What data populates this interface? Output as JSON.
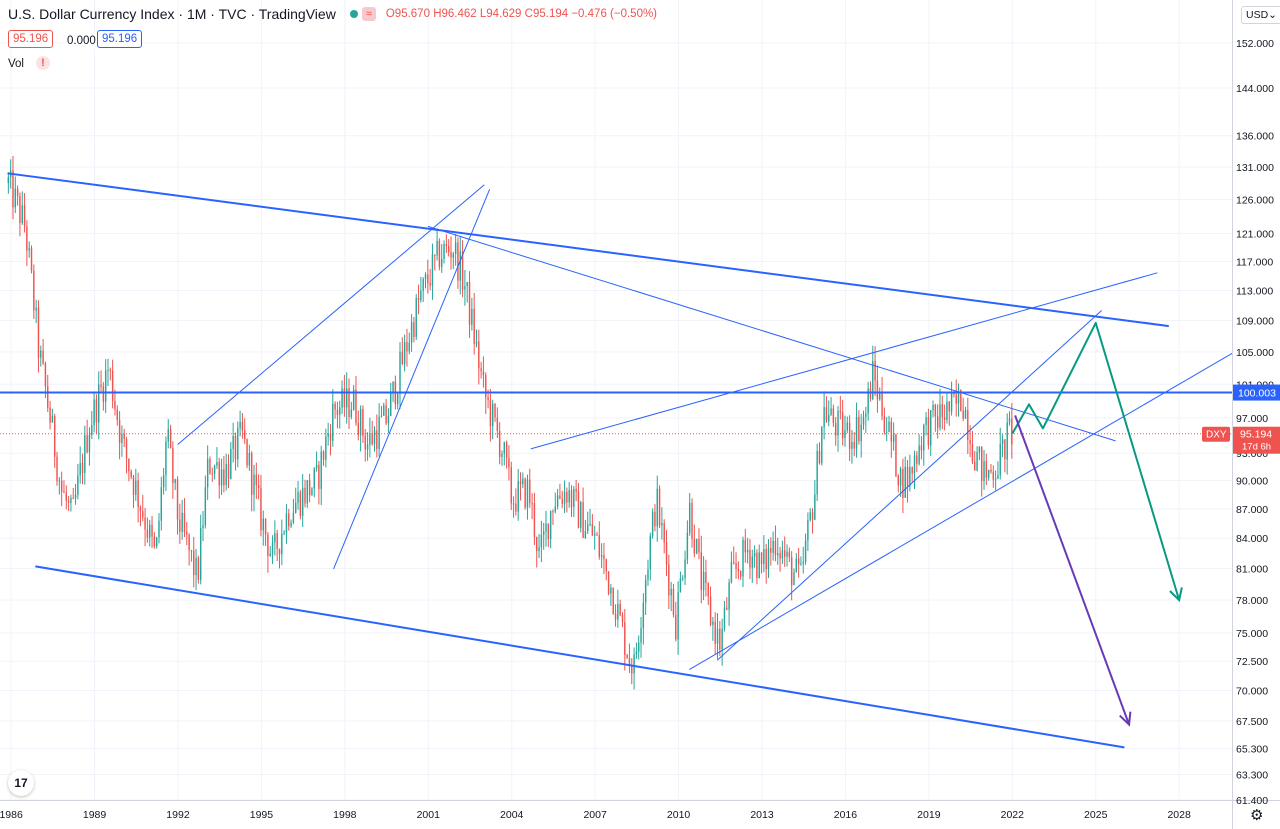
{
  "header": {
    "title": "U.S. Dollar Currency Index · 1M · TVC · TradingView",
    "wave_badge": "≈",
    "ohlc": {
      "o": "O95.670",
      "h": "H96.462",
      "l": "L94.629",
      "c": "C95.194",
      "chg": "−0.476 (−0.50%)"
    }
  },
  "price_boxes": {
    "bid": "95.196",
    "spread": "0.000",
    "ask": "95.196"
  },
  "volume": {
    "label": "Vol",
    "warning": "!"
  },
  "currency_button": "USD⌄",
  "logo_text": "17",
  "settings_icon": "⚙",
  "colors": {
    "up": "#26a69a",
    "down": "#ef5350",
    "trend": "#2962ff",
    "green_path": "#089981",
    "purple_path": "#673ab7",
    "grid": "#f0f3fa"
  },
  "chart_data": {
    "type": "candlestick",
    "y_scale": "log",
    "ylim": [
      61.4,
      160
    ],
    "xlim": [
      1985.6,
      2029.9
    ],
    "x_ticks": [
      "1986",
      "1989",
      "1992",
      "1995",
      "1998",
      "2001",
      "2004",
      "2007",
      "2010",
      "2013",
      "2016",
      "2019",
      "2022",
      "2025",
      "2028"
    ],
    "x_tick_values": [
      1986,
      1989,
      1992,
      1995,
      1998,
      2001,
      2004,
      2007,
      2010,
      2013,
      2016,
      2019,
      2022,
      2025,
      2028
    ],
    "y_ticks": [
      "152.000",
      "144.000",
      "136.000",
      "131.000",
      "126.000",
      "121.000",
      "117.000",
      "113.000",
      "109.000",
      "105.000",
      "101.000",
      "97.000",
      "93.000",
      "90.000",
      "87.000",
      "84.000",
      "81.000",
      "78.000",
      "75.000",
      "72.500",
      "70.000",
      "67.500",
      "65.300",
      "63.300",
      "61.400"
    ],
    "y_tick_values": [
      152,
      144,
      136,
      131,
      126,
      121,
      117,
      113,
      109,
      105,
      101,
      97,
      93,
      90,
      87,
      84,
      81,
      78,
      75,
      72.5,
      70,
      67.5,
      65.3,
      63.3,
      61.4
    ],
    "current_price": {
      "symbol": "DXY",
      "value": "95.194",
      "countdown": "17d 6h",
      "price": 95.194
    },
    "horizontal_level": {
      "value": "100.003",
      "price": 100.003
    },
    "anchors": [
      [
        1985.9,
        128.5
      ],
      [
        1986.5,
        122
      ],
      [
        1987.0,
        105
      ],
      [
        1987.8,
        89
      ],
      [
        1988.2,
        86
      ],
      [
        1988.8,
        96
      ],
      [
        1989.5,
        103
      ],
      [
        1990.0,
        94
      ],
      [
        1990.8,
        86
      ],
      [
        1991.2,
        82
      ],
      [
        1991.6,
        95
      ],
      [
        1992.0,
        86
      ],
      [
        1992.7,
        80
      ],
      [
        1993.1,
        92
      ],
      [
        1993.7,
        91
      ],
      [
        1994.3,
        95
      ],
      [
        1995.0,
        86
      ],
      [
        1995.4,
        82
      ],
      [
        1996.0,
        87
      ],
      [
        1997.0,
        90
      ],
      [
        1997.6,
        98
      ],
      [
        1998.3,
        99
      ],
      [
        1998.8,
        94
      ],
      [
        1999.5,
        97
      ],
      [
        2000.0,
        103
      ],
      [
        2000.7,
        112
      ],
      [
        2001.4,
        118
      ],
      [
        2001.9,
        119
      ],
      [
        2002.3,
        114
      ],
      [
        2002.6,
        108
      ],
      [
        2003.0,
        100
      ],
      [
        2003.7,
        93
      ],
      [
        2004.0,
        88
      ],
      [
        2004.6,
        89
      ],
      [
        2005.0,
        82
      ],
      [
        2005.5,
        88
      ],
      [
        2006.0,
        89
      ],
      [
        2006.5,
        86
      ],
      [
        2007.0,
        84
      ],
      [
        2007.6,
        79
      ],
      [
        2008.2,
        73
      ],
      [
        2008.4,
        72
      ],
      [
        2008.8,
        80
      ],
      [
        2009.2,
        88
      ],
      [
        2009.6,
        81
      ],
      [
        2009.9,
        76
      ],
      [
        2010.4,
        87
      ],
      [
        2010.8,
        80
      ],
      [
        2011.2,
        76
      ],
      [
        2011.5,
        74
      ],
      [
        2011.9,
        80
      ],
      [
        2012.5,
        83
      ],
      [
        2013.0,
        81
      ],
      [
        2013.5,
        84
      ],
      [
        2014.0,
        81
      ],
      [
        2014.4,
        80
      ],
      [
        2014.9,
        89
      ],
      [
        2015.2,
        98
      ],
      [
        2015.7,
        96
      ],
      [
        2016.2,
        95
      ],
      [
        2016.7,
        97
      ],
      [
        2016.98,
        102.2
      ],
      [
        2017.5,
        96
      ],
      [
        2018.0,
        90
      ],
      [
        2018.3,
        90.5
      ],
      [
        2018.8,
        95.5
      ],
      [
        2019.5,
        97.5
      ],
      [
        2020.0,
        98.5
      ],
      [
        2020.2,
        99.5
      ],
      [
        2020.6,
        93.5
      ],
      [
        2021.0,
        90.5
      ],
      [
        2021.4,
        91.5
      ],
      [
        2021.7,
        93.5
      ],
      [
        2021.95,
        96
      ],
      [
        2022.0,
        95.19
      ]
    ],
    "trend_lines": [
      {
        "x": [
          1985.9,
          2027.6
        ],
        "y": [
          130,
          108.3
        ],
        "style": "thick"
      },
      {
        "x": [
          1986.9,
          2026.0
        ],
        "y": [
          81.2,
          65.4
        ],
        "style": "thick"
      },
      {
        "x": [
          1985.6,
          2029.9
        ],
        "y": [
          100.003,
          100.003
        ],
        "style": "thick"
      },
      {
        "x": [
          1992.0,
          2003.0
        ],
        "y": [
          94,
          128.2
        ],
        "style": "thin"
      },
      {
        "x": [
          1997.6,
          2003.2
        ],
        "y": [
          81,
          127.5
        ],
        "style": "thin"
      },
      {
        "x": [
          2001.0,
          2025.7
        ],
        "y": [
          122,
          94.4
        ],
        "style": "thin"
      },
      {
        "x": [
          2004.7,
          2027.2
        ],
        "y": [
          93.5,
          115.4
        ],
        "style": "thin"
      },
      {
        "x": [
          2011.4,
          2025.2
        ],
        "y": [
          72.6,
          110.3
        ],
        "style": "thin"
      },
      {
        "x": [
          2010.4,
          2029.9
        ],
        "y": [
          71.8,
          104.8
        ],
        "style": "thin"
      }
    ],
    "projections": [
      {
        "name": "green-path",
        "x": [
          2022.0,
          2022.6,
          2023.1,
          2025.0,
          2028.0,
          2027.6
        ],
        "y": [
          95.2,
          98.6,
          95.8,
          108.7,
          78.0,
          78.9
        ]
      },
      {
        "name": "purple-path",
        "x": [
          2022.1,
          2026.2
        ],
        "y": [
          97.3,
          67.2
        ]
      }
    ]
  }
}
